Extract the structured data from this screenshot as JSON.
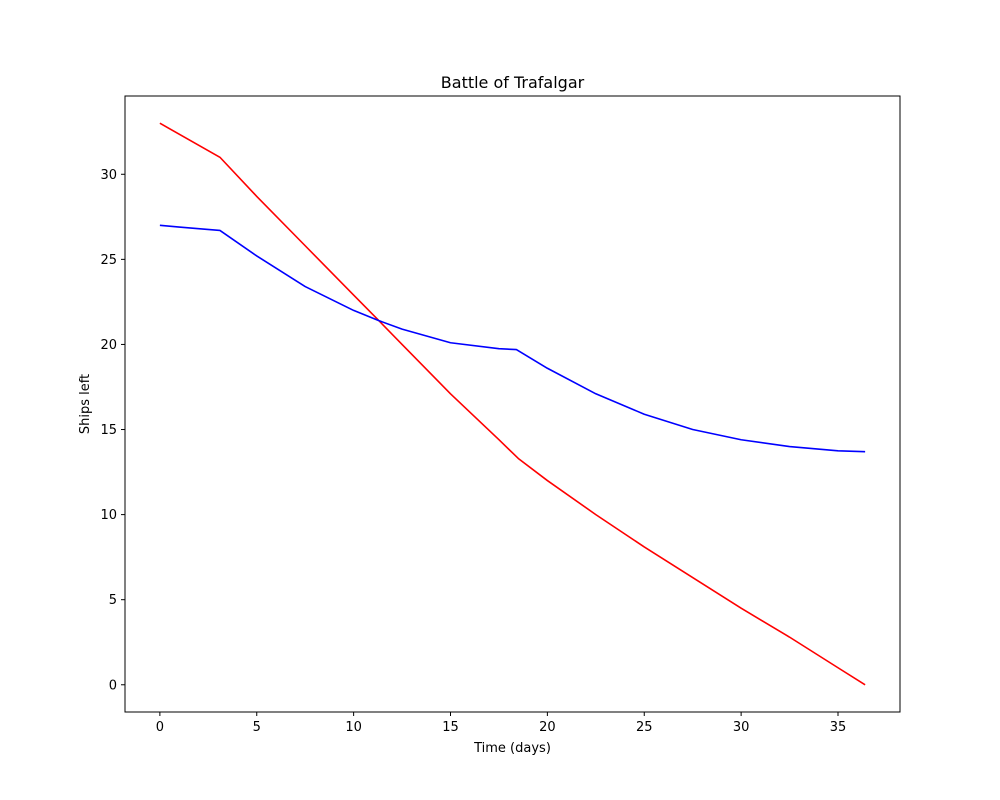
{
  "chart_data": {
    "type": "line",
    "title": "Battle of Trafalgar",
    "xlabel": "Time (days)",
    "ylabel": "Ships left",
    "xlim": [
      -1.8,
      38.2
    ],
    "ylim": [
      -1.6,
      34.6
    ],
    "xticks": [
      0,
      5,
      10,
      15,
      20,
      25,
      30,
      35
    ],
    "yticks": [
      0,
      5,
      10,
      15,
      20,
      25,
      30
    ],
    "grid": false,
    "series": [
      {
        "color": "#ff0000",
        "x": [
          0,
          3.1,
          5,
          7.5,
          10,
          11.3,
          12.5,
          15,
          17.5,
          18.5,
          20,
          22.5,
          25,
          27.5,
          30,
          32.5,
          35,
          36.4
        ],
        "y": [
          33.0,
          31.0,
          28.7,
          25.8,
          22.9,
          21.4,
          20.0,
          17.1,
          14.4,
          13.3,
          12.0,
          10.0,
          8.1,
          6.3,
          4.5,
          2.8,
          1.0,
          0.0
        ]
      },
      {
        "color": "#0000ff",
        "x": [
          0,
          1,
          2,
          3.1,
          5,
          7.5,
          10,
          11.3,
          12.5,
          15,
          17.5,
          18.4,
          20,
          22.5,
          25,
          27.5,
          30,
          32.5,
          35,
          36.4
        ],
        "y": [
          27.0,
          26.9,
          26.8,
          26.7,
          25.2,
          23.4,
          22.0,
          21.4,
          20.9,
          20.1,
          19.75,
          19.7,
          18.6,
          17.1,
          15.9,
          15.0,
          14.4,
          14.0,
          13.75,
          13.7
        ]
      }
    ]
  }
}
